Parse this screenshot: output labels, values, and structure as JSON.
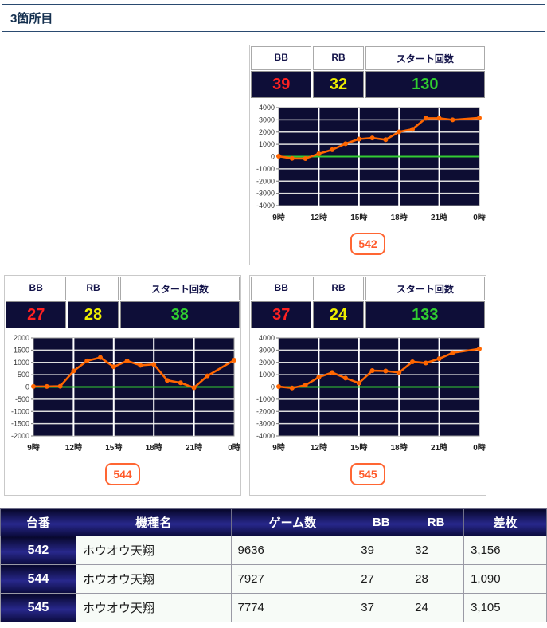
{
  "section": {
    "title": "3箇所目"
  },
  "stat_labels": {
    "bb": "BB",
    "rb": "RB",
    "start": "スタート回数"
  },
  "panels": [
    {
      "machine": "542",
      "bb": "39",
      "rb": "32",
      "start": "130"
    },
    {
      "machine": "544",
      "bb": "27",
      "rb": "28",
      "start": "38"
    },
    {
      "machine": "545",
      "bb": "37",
      "rb": "24",
      "start": "133"
    }
  ],
  "colors": {
    "bb_value": "#ff2121",
    "rb_value": "#eded00",
    "start_value": "#30cf30",
    "stat_panel_bg": "#0e0e38",
    "line": "#ff6600",
    "zero_line": "#33cc33",
    "plot_bg": "#0d0d33",
    "table_header_navy": "#16164d",
    "badge_orange": "#ff6633"
  },
  "chart_data": [
    {
      "type": "line",
      "machine": "542",
      "x": [
        9,
        10,
        11,
        12,
        13,
        14,
        15,
        16,
        17,
        18,
        19,
        20,
        21,
        22,
        24
      ],
      "values": [
        30,
        -150,
        -160,
        230,
        560,
        1050,
        1430,
        1520,
        1380,
        2020,
        2230,
        3130,
        3130,
        3000,
        3156
      ],
      "xlim": [
        9,
        24
      ],
      "xticks": [
        9,
        12,
        15,
        18,
        21,
        24
      ],
      "xtick_labels": [
        "9時",
        "12時",
        "15時",
        "18時",
        "21時",
        "0時"
      ],
      "ylim": [
        -4000,
        4000
      ],
      "ytick_step": 1000,
      "grid": true,
      "line_color": "#ff6600",
      "zero_line_color": "#33cc33",
      "plot_bg": "#0d0d33"
    },
    {
      "type": "line",
      "machine": "544",
      "x": [
        9,
        10,
        11,
        12,
        13,
        14,
        15,
        16,
        17,
        18,
        19,
        20,
        21,
        22,
        24
      ],
      "values": [
        20,
        20,
        30,
        650,
        1060,
        1200,
        820,
        1060,
        880,
        920,
        270,
        170,
        -30,
        450,
        1090
      ],
      "xlim": [
        9,
        24
      ],
      "xticks": [
        9,
        12,
        15,
        18,
        21,
        24
      ],
      "xtick_labels": [
        "9時",
        "12時",
        "15時",
        "18時",
        "21時",
        "0時"
      ],
      "ylim": [
        -2000,
        2000
      ],
      "ytick_step": 500,
      "grid": true,
      "line_color": "#ff6600",
      "zero_line_color": "#33cc33",
      "plot_bg": "#0d0d33"
    },
    {
      "type": "line",
      "machine": "545",
      "x": [
        9,
        10,
        11,
        12,
        13,
        14,
        15,
        16,
        17,
        18,
        19,
        20,
        21,
        22,
        24
      ],
      "values": [
        30,
        -80,
        150,
        800,
        1180,
        720,
        320,
        1330,
        1300,
        1180,
        2050,
        1950,
        2300,
        2780,
        3105
      ],
      "xlim": [
        9,
        24
      ],
      "xticks": [
        9,
        12,
        15,
        18,
        21,
        24
      ],
      "xtick_labels": [
        "9時",
        "12時",
        "15時",
        "18時",
        "21時",
        "0時"
      ],
      "ylim": [
        -4000,
        4000
      ],
      "ytick_step": 1000,
      "grid": true,
      "line_color": "#ff6600",
      "zero_line_color": "#33cc33",
      "plot_bg": "#0d0d33"
    }
  ],
  "table": {
    "headers": [
      "台番",
      "機種名",
      "ゲーム数",
      "BB",
      "RB",
      "差枚"
    ],
    "rows": [
      [
        "542",
        "ホウオウ天翔",
        "9636",
        "39",
        "32",
        "3,156"
      ],
      [
        "544",
        "ホウオウ天翔",
        "7927",
        "27",
        "28",
        "1,090"
      ],
      [
        "545",
        "ホウオウ天翔",
        "7774",
        "37",
        "24",
        "3,105"
      ]
    ]
  }
}
